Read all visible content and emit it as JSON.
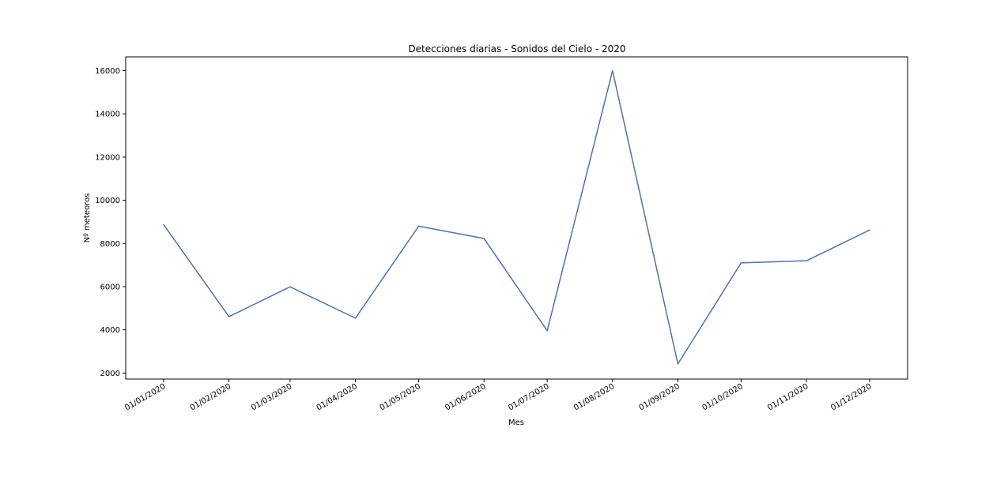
{
  "chart_data": {
    "type": "line",
    "title": "Detecciones diarias - Sonidos del Cielo - 2020",
    "xlabel": "Mes",
    "ylabel": "Nº meteoros",
    "x": [
      "01/01/2020",
      "01/02/2020",
      "01/03/2020",
      "01/04/2020",
      "01/05/2020",
      "01/06/2020",
      "01/07/2020",
      "01/08/2020",
      "01/09/2020",
      "01/10/2020",
      "01/11/2020",
      "01/12/2020"
    ],
    "series": [
      {
        "values": [
          8870,
          4610,
          5990,
          4540,
          8800,
          8230,
          3960,
          16000,
          2420,
          7100,
          7200,
          8620
        ],
        "color": "#4c72b0"
      }
    ],
    "y_ticks": [
      2000,
      4000,
      6000,
      8000,
      10000,
      12000,
      14000,
      16000
    ],
    "ylim": [
      1720,
      16640
    ],
    "xlim": [
      "2019-12-14",
      "2020-12-19"
    ],
    "grid": false,
    "legend": "none"
  }
}
